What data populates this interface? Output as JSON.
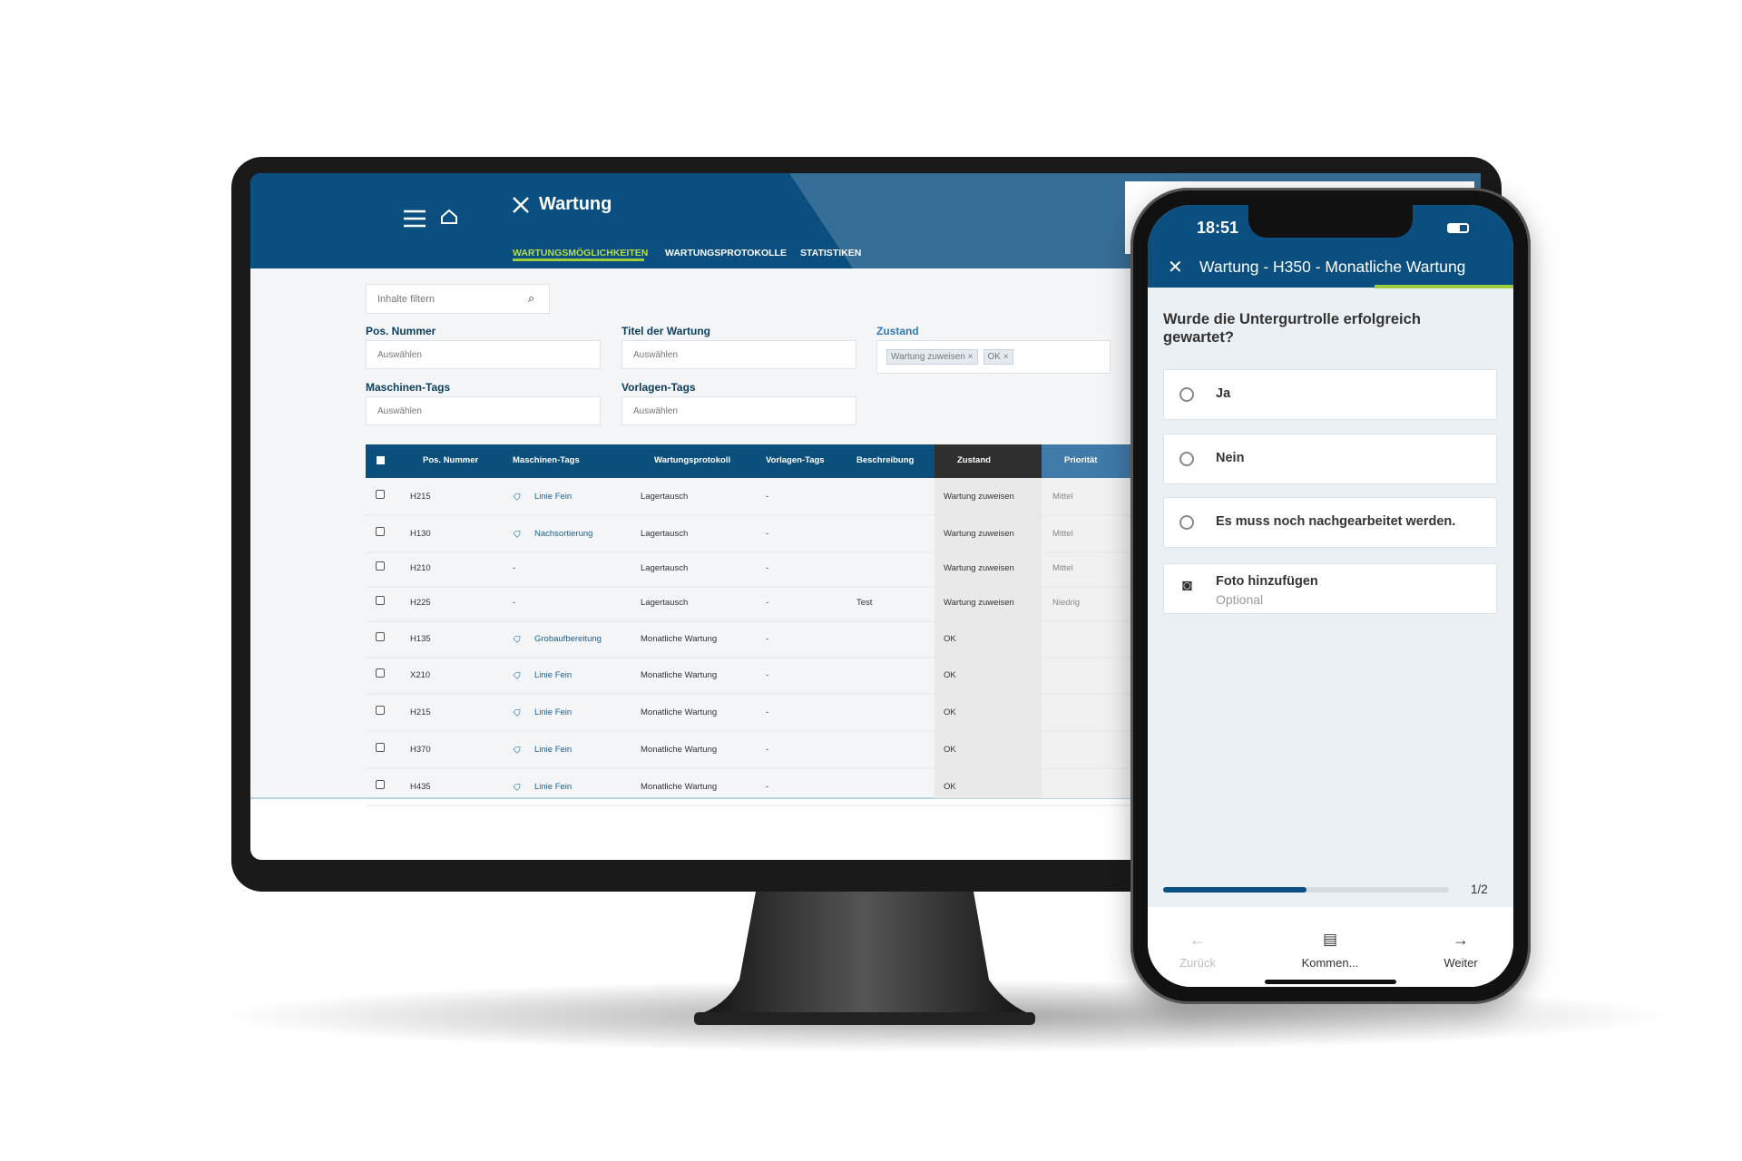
{
  "desktop": {
    "title": "Wartung",
    "tabs": [
      "WARTUNGSMÖGLICHKEITEN",
      "WARTUNGSPROTOKOLLE",
      "STATISTIKEN"
    ],
    "filter_placeholder": "Inhalte filtern",
    "filters": [
      {
        "label": "Pos. Nummer",
        "placeholder": "Auswählen"
      },
      {
        "label": "Titel der Wartung",
        "placeholder": "Auswählen"
      },
      {
        "label": "Maschinen-Tags",
        "placeholder": "Auswählen"
      },
      {
        "label": "Vorlagen-Tags",
        "placeholder": "Auswählen"
      }
    ],
    "zustand": {
      "label": "Zustand",
      "chips": [
        "Wartung zuweisen",
        "OK"
      ]
    },
    "table": {
      "columns": [
        "Pos. Nummer",
        "Maschinen-Tags",
        "Wartungsprotokoll",
        "Vorlagen-Tags",
        "Beschreibung",
        "Zustand",
        "Priorität"
      ],
      "rows": [
        [
          "H215",
          "Linie Fein",
          "Lagertausch",
          "-",
          null,
          "Wartung zuweisen",
          "Mittel"
        ],
        [
          "H130",
          "Nachsortierung",
          "Lagertausch",
          "-",
          null,
          "Wartung zuweisen",
          "Mittel"
        ],
        [
          "H210",
          "-",
          "Lagertausch",
          "-",
          null,
          "Wartung zuweisen",
          "Mittel"
        ],
        [
          "H225",
          "-",
          "Lagertausch",
          "-",
          "Test",
          "Wartung zuweisen",
          "Niedrig"
        ],
        [
          "H135",
          "Grobaufbereitung",
          "Monatliche Wartung",
          "-",
          null,
          "OK",
          null
        ],
        [
          "X210",
          "Linie Fein",
          "Monatliche Wartung",
          "-",
          null,
          "OK",
          null
        ],
        [
          "H215",
          "Linie Fein",
          "Monatliche Wartung",
          "-",
          null,
          "OK",
          null
        ],
        [
          "H370",
          "Linie Fein",
          "Monatliche Wartung",
          "-",
          null,
          "OK",
          null
        ],
        [
          "H435",
          "Linie Fein",
          "Monatliche Wartung",
          "-",
          null,
          "OK",
          null
        ]
      ]
    }
  },
  "phone": {
    "time": "18:51",
    "title": "Wartung - H350 - Monatliche Wartung",
    "question": "Wurde die Untergurtrolle erfolgreich gewartet?",
    "options": [
      "Ja",
      "Nein",
      "Es muss noch nachgearbeitet werden."
    ],
    "photo": {
      "label": "Foto hinzufügen",
      "hint": "Optional"
    },
    "progress": "1/2",
    "nav": [
      "Zurück",
      "Kommen...",
      "Weiter"
    ]
  }
}
